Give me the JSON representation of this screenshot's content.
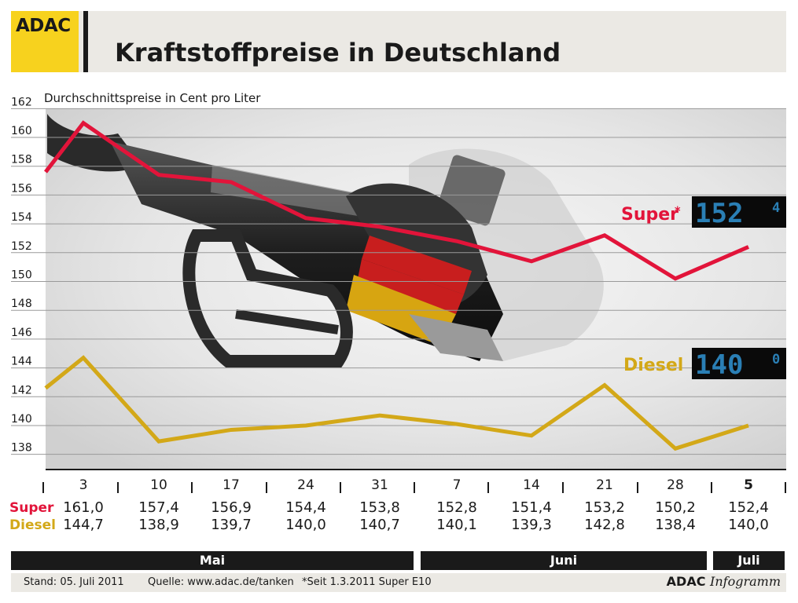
{
  "header": {
    "logo_text": "ADAC",
    "title": "Kraftstoffpreise in Deutschland",
    "brand_color": "#f7d21e"
  },
  "chart_data": {
    "type": "line",
    "title": "Kraftstoffpreise in Deutschland",
    "ylabel": "Durchschnittspreise in Cent pro Liter",
    "ylim": [
      137,
      163
    ],
    "yticks": [
      138,
      140,
      142,
      144,
      146,
      148,
      150,
      152,
      154,
      156,
      158,
      160,
      162
    ],
    "grid": true,
    "categories": [
      "3",
      "10",
      "17",
      "24",
      "31",
      "7",
      "14",
      "21",
      "28",
      "5"
    ],
    "series": [
      {
        "name": "Super",
        "color": "#e2143a",
        "current_display": "152",
        "current_display_small": "4",
        "values": [
          161.0,
          157.4,
          156.9,
          154.4,
          153.8,
          152.8,
          151.4,
          153.2,
          150.2,
          152.4
        ]
      },
      {
        "name": "Diesel",
        "color": "#d3a818",
        "current_display": "140",
        "current_display_small": "0",
        "values": [
          144.7,
          138.9,
          139.7,
          140.0,
          140.7,
          140.1,
          139.3,
          142.8,
          138.4,
          140.0
        ]
      }
    ]
  },
  "table": {
    "days": [
      "3",
      "10",
      "17",
      "24",
      "31",
      "7",
      "14",
      "21",
      "28",
      "5"
    ],
    "super_label": "Super",
    "super_star": "*",
    "diesel_label": "Diesel",
    "super_values": [
      "161,0",
      "157,4",
      "156,9",
      "154,4",
      "153,8",
      "152,8",
      "151,4",
      "153,2",
      "150,2",
      "152,4"
    ],
    "diesel_values": [
      "144,7",
      "138,9",
      "139,7",
      "140,0",
      "140,7",
      "140,1",
      "139,3",
      "142,8",
      "138,4",
      "140,0"
    ]
  },
  "months": {
    "may": "Mai",
    "june": "Juni",
    "july": "Juli"
  },
  "footer": {
    "stand": "Stand:  05. Juli 2011",
    "quelle": "Quelle: www.adac.de/tanken",
    "note": "*Seit 1.3.2011 Super E10",
    "brand_bold": "ADAC",
    "brand_italic": "Infogramm"
  }
}
